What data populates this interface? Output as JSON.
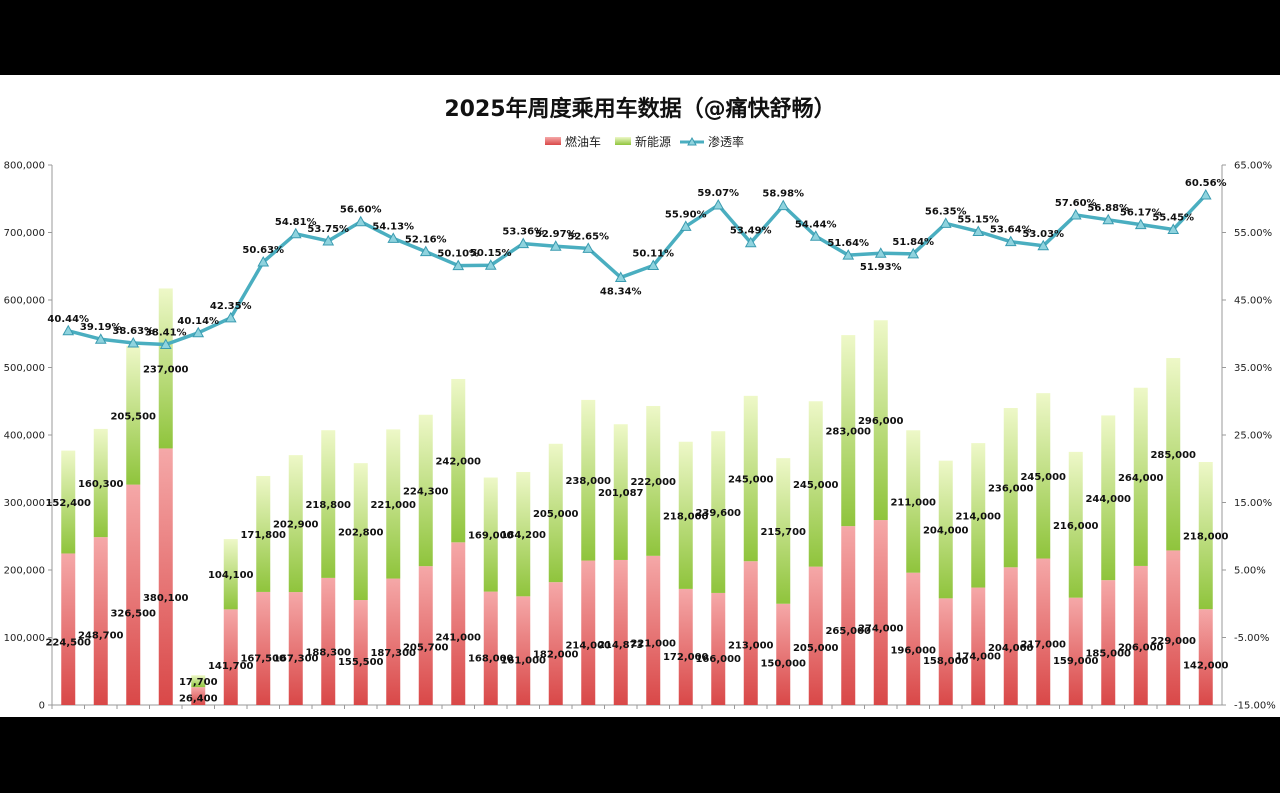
{
  "chart_data": {
    "type": "bar",
    "title": "2025年周度乘用车数据（@痛快舒畅）",
    "legend": {
      "position": "top",
      "entries": [
        "燃油车",
        "新能源",
        "渗透率"
      ]
    },
    "colors": {
      "fuel": "#e05a5a",
      "nev": "#b9e06a",
      "rate": "#4aaec0"
    },
    "y_left": {
      "min": 0,
      "max": 800000,
      "ticks": [
        "0",
        "100,000",
        "200,000",
        "300,000",
        "400,000",
        "500,000",
        "600,000",
        "700,000",
        "800,000"
      ]
    },
    "y_right": {
      "min": -15,
      "max": 65,
      "ticks": [
        "-15.00%",
        "-5.00%",
        "5.00%",
        "15.00%",
        "25.00%",
        "35.00%",
        "45.00%",
        "55.00%",
        "65.00%"
      ]
    },
    "series": [
      {
        "name": "燃油车",
        "values": [
          224500,
          248700,
          326500,
          380100,
          26400,
          141700,
          167500,
          167300,
          188300,
          155500,
          187300,
          205700,
          241000,
          168000,
          161000,
          182000,
          214000,
          214873,
          221000,
          172000,
          166000,
          213000,
          150000,
          205000,
          265000,
          274000,
          196000,
          158000,
          174000,
          204000,
          217000,
          159000,
          185000,
          206000,
          229000,
          142000
        ],
        "labels": [
          "224,500",
          "248,700",
          "326,500",
          "380,100",
          "26,400",
          "141,700",
          "167,500",
          "167,300",
          "188,300",
          "155,500",
          "187,300",
          "205,700",
          "241,000",
          "168,000",
          "161,000",
          "182,000",
          "214,000",
          "214,873",
          "221,000",
          "172,000",
          "166,000",
          "213,000",
          "150,000",
          "205,000",
          "265,000",
          "274,000",
          "196,000",
          "158,000",
          "174,000",
          "204,000",
          "217,000",
          "159,000",
          "185,000",
          "206,000",
          "229,000",
          "142,000"
        ]
      },
      {
        "name": "新能源",
        "values": [
          152400,
          160300,
          205500,
          237000,
          17700,
          104100,
          171800,
          202900,
          218800,
          202800,
          221000,
          224300,
          242000,
          169000,
          184200,
          205000,
          238000,
          201087,
          222000,
          218000,
          239600,
          245000,
          215700,
          245000,
          283000,
          296000,
          211000,
          204000,
          214000,
          236000,
          245000,
          216000,
          244000,
          264000,
          285000,
          218000
        ],
        "labels": [
          "152,400",
          "160,300",
          "205,500",
          "237,000",
          "17,700",
          "104,100",
          "171,800",
          "202,900",
          "218,800",
          "202,800",
          "221,000",
          "224,300",
          "242,000",
          "169,000",
          "184,200",
          "205,000",
          "238,000",
          "201,087",
          "222,000",
          "218,000",
          "239,600",
          "245,000",
          "215,700",
          "245,000",
          "283,000",
          "296,000",
          "211,000",
          "204,000",
          "214,000",
          "236,000",
          "245,000",
          "216,000",
          "244,000",
          "264,000",
          "285,000",
          "218,000"
        ]
      },
      {
        "name": "渗透率",
        "values": [
          40.44,
          39.19,
          38.63,
          38.41,
          40.14,
          42.35,
          50.63,
          54.81,
          53.75,
          56.6,
          54.13,
          52.16,
          50.1,
          50.15,
          53.36,
          52.97,
          52.65,
          48.34,
          50.11,
          55.9,
          59.07,
          53.49,
          58.98,
          54.44,
          51.64,
          51.93,
          51.84,
          56.35,
          55.15,
          53.64,
          53.03,
          57.6,
          56.88,
          56.17,
          55.45,
          60.56
        ],
        "labels": [
          "40.44%",
          "39.19%",
          "38.63%",
          "38.41%",
          "40.14%",
          "42.35%",
          "50.63%",
          "54.81%",
          "53.75%",
          "56.60%",
          "54.13%",
          "52.16%",
          "50.10%",
          "50.15%",
          "53.36%",
          "52.97%",
          "52.65%",
          "48.34%",
          "50.11%",
          "55.90%",
          "59.07%",
          "53.49%",
          "58.98%",
          "54.44%",
          "51.64%",
          "51.93%",
          "51.84%",
          "56.35%",
          "55.15%",
          "53.64%",
          "53.03%",
          "57.60%",
          "56.88%",
          "56.17%",
          "55.45%",
          "60.56%"
        ]
      }
    ]
  }
}
